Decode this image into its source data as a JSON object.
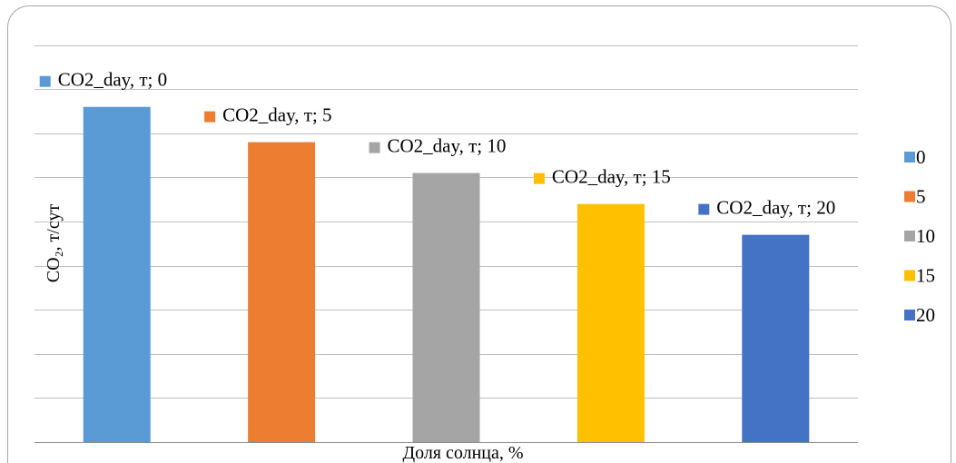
{
  "chart_data": {
    "type": "bar",
    "title": "",
    "xlabel": "Доля солнца, %",
    "ylabel": "CO₂, т/сут",
    "categories": [
      "0",
      "5",
      "10",
      "15",
      "20"
    ],
    "values": [
      3.8,
      3.4,
      3.05,
      2.7,
      2.35
    ],
    "ylim": [
      0,
      4.6
    ],
    "y_gridline_step": 0.5,
    "y_tick_labels_shown": false,
    "grid": true,
    "legend": {
      "position": "right",
      "entries": [
        "0",
        "5",
        "10",
        "15",
        "20"
      ]
    },
    "data_labels": [
      "CO2_day, т; 0",
      "CO2_day, т; 5",
      "CO2_day, т; 10",
      "CO2_day, т; 15",
      "CO2_day, т; 20"
    ],
    "colors": [
      "#5b9bd5",
      "#ed7d31",
      "#a5a5a5",
      "#ffc000",
      "#4472c4"
    ]
  }
}
